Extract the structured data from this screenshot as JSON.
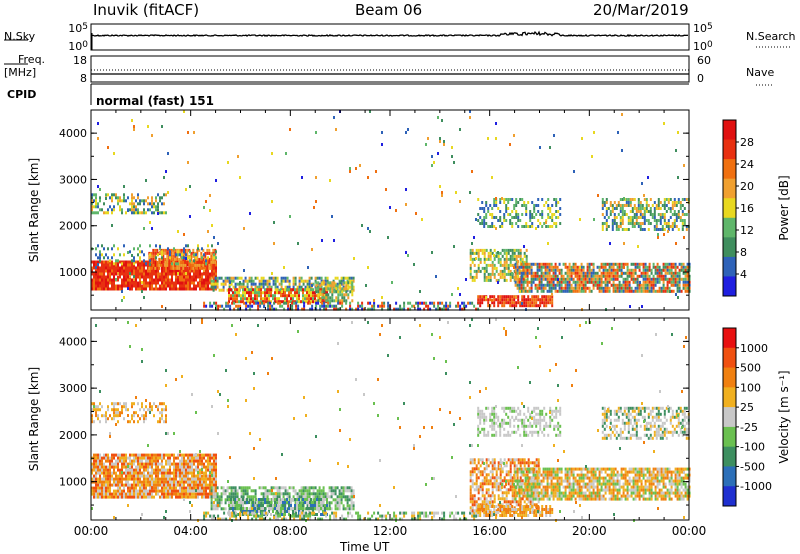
{
  "header": {
    "station": "Inuvik (fitACF)",
    "beam": "Beam 06",
    "date": "20/Mar/2019"
  },
  "strip_labels": {
    "nsky": "N.Sky",
    "nsearch": "N.Search",
    "freq": "Freq.",
    "freq_unit": "[MHz]",
    "nave": "Nave",
    "cpid": "CPID",
    "cpid_value": "normal (fast) 151"
  },
  "chart_data": [
    {
      "type": "line",
      "name": "noise",
      "left_ticks": [
        "10^5",
        "10^0"
      ],
      "right_ticks": [
        "10^5",
        "10^0"
      ],
      "series": [
        {
          "name": "N.Sky",
          "style": "solid"
        },
        {
          "name": "N.Search",
          "style": "dotted"
        }
      ]
    },
    {
      "type": "line",
      "name": "freq-nave",
      "left_ticks": [
        "18",
        "8"
      ],
      "right_ticks": [
        "60",
        "0"
      ],
      "series": [
        {
          "name": "Freq.",
          "style": "solid"
        },
        {
          "name": "Nave",
          "style": "dotted"
        }
      ]
    },
    {
      "type": "heatmap",
      "name": "power",
      "ylabel": "Slant Range [km]",
      "yticks": [
        "1000",
        "2000",
        "3000",
        "4000"
      ],
      "ylim": [
        180,
        4500
      ],
      "colorbar_label": "Power [dB]",
      "colorbar_ticks": [
        "4",
        "8",
        "12",
        "16",
        "20",
        "24",
        "28"
      ],
      "colors": [
        "#1f1fe0",
        "#2e62b8",
        "#3f8e5e",
        "#5fb66a",
        "#e8d820",
        "#f0a030",
        "#f07010",
        "#e83010",
        "#e01010"
      ]
    },
    {
      "type": "heatmap",
      "name": "velocity",
      "ylabel": "Slant Range [km]",
      "yticks": [
        "1000",
        "2000",
        "3000",
        "4000"
      ],
      "ylim": [
        180,
        4500
      ],
      "colorbar_label": "Velocity [m s⁻¹]",
      "colorbar_ticks": [
        "1000",
        "500",
        "100",
        "25",
        "-25",
        "-100",
        "-500",
        "-1000"
      ],
      "colors": [
        "#1f30d0",
        "#2c6fb8",
        "#3d8f60",
        "#6ac050",
        "#c8c8c8",
        "#f0b020",
        "#f08010",
        "#f05010",
        "#e81010"
      ]
    }
  ],
  "xaxis": {
    "label": "Time UT",
    "ticks": [
      "00:00",
      "04:00",
      "08:00",
      "12:00",
      "16:00",
      "20:00",
      "00:00"
    ]
  }
}
